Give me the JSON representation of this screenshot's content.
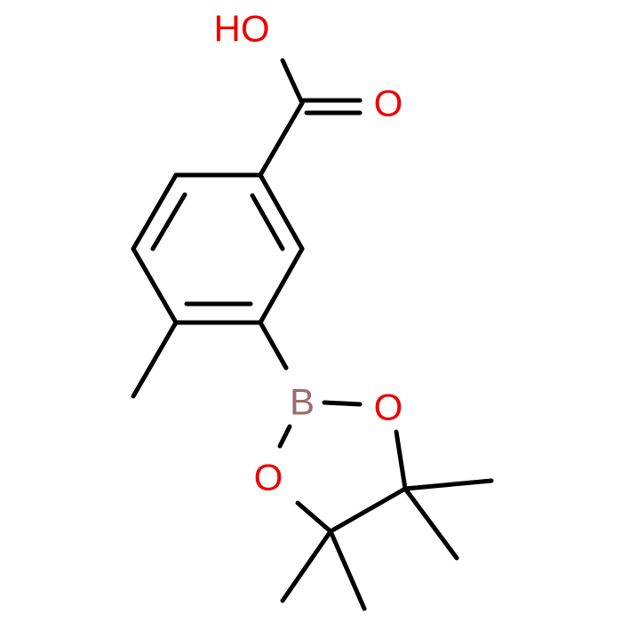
{
  "atoms": [
    {
      "label": "HO"
    },
    {
      "label": "O"
    },
    {
      "label": "B"
    },
    {
      "label": "O"
    },
    {
      "label": "O"
    }
  ]
}
